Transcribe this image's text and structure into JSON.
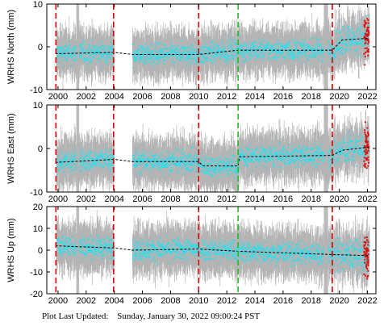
{
  "chart_data": [
    {
      "type": "scatter",
      "ylabel": "WRHS North (mm)",
      "ylim": [
        -10,
        10
      ],
      "yticks": [
        -10,
        0,
        10
      ],
      "xlim": [
        1999.2,
        2022.6
      ],
      "xticks": [
        2000,
        2002,
        2004,
        2006,
        2008,
        2010,
        2012,
        2014,
        2016,
        2018,
        2020,
        2022
      ],
      "trend": [
        [
          1999.8,
          -1.6
        ],
        [
          2004.0,
          -1.3
        ],
        [
          2005.3,
          -1.8
        ],
        [
          2010.0,
          -1.8
        ],
        [
          2012.8,
          -0.8
        ],
        [
          2019.5,
          -0.8
        ],
        [
          2020.2,
          1.6
        ],
        [
          2022.1,
          2.0
        ]
      ]
    },
    {
      "type": "scatter",
      "ylabel": "WRHS East (mm)",
      "ylim": [
        -10,
        10
      ],
      "yticks": [
        -10,
        0,
        10
      ],
      "xlim": [
        1999.2,
        2022.6
      ],
      "xticks": [
        2000,
        2002,
        2004,
        2006,
        2008,
        2010,
        2012,
        2014,
        2016,
        2018,
        2020,
        2022
      ],
      "trend": [
        [
          1999.8,
          -3.2
        ],
        [
          2004.0,
          -2.5
        ],
        [
          2005.3,
          -3.0
        ],
        [
          2010.0,
          -3.0
        ],
        [
          2010.3,
          -4.0
        ],
        [
          2012.8,
          -4.0
        ],
        [
          2012.9,
          -1.9
        ],
        [
          2019.5,
          -1.6
        ],
        [
          2020.2,
          -0.4
        ],
        [
          2022.1,
          0.3
        ]
      ]
    },
    {
      "type": "scatter",
      "ylabel": "WRHS Up (mm)",
      "ylim": [
        -20,
        20
      ],
      "yticks": [
        -20,
        -10,
        0,
        10,
        20
      ],
      "xlim": [
        1999.2,
        2022.6
      ],
      "xticks": [
        2000,
        2002,
        2004,
        2006,
        2008,
        2010,
        2012,
        2014,
        2016,
        2018,
        2020,
        2022
      ],
      "trend": [
        [
          1999.8,
          2.0
        ],
        [
          2004.0,
          1.0
        ],
        [
          2005.3,
          0.0
        ],
        [
          2010.0,
          0.5
        ],
        [
          2012.8,
          -0.5
        ],
        [
          2019.5,
          -2.0
        ],
        [
          2022.1,
          -2.5
        ]
      ]
    }
  ],
  "event_lines": [
    {
      "year": 1999.85,
      "color": "#dd0000"
    },
    {
      "year": 2003.95,
      "color": "#dd0000"
    },
    {
      "year": 2010.0,
      "color": "#dd0000"
    },
    {
      "year": 2012.8,
      "color": "#22bb22"
    },
    {
      "year": 2019.5,
      "color": "#dd0000"
    }
  ],
  "colors": {
    "error_bars": "#b4b4b4",
    "points": "#22e1f0",
    "recent_points": "#e01010",
    "trend": "#000000"
  },
  "footer": {
    "label": "Plot Last Updated:",
    "timestamp": "Sunday, January 30, 2022 09:00:24 PST"
  }
}
